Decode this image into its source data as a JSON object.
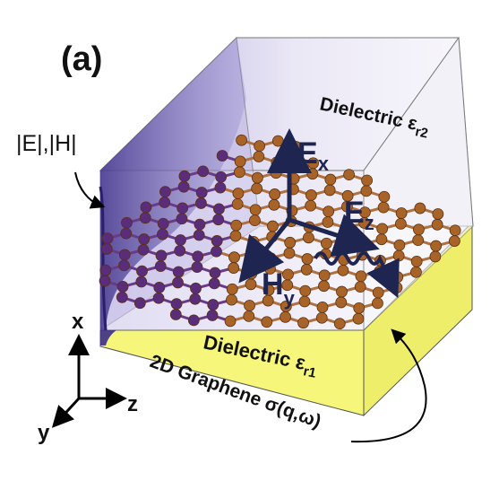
{
  "panel_label": "(a)",
  "field_label": "|E|,|H|",
  "upper_dielectric": {
    "label": "Dielectric ε",
    "subscript": "r2"
  },
  "lower_dielectric": {
    "label": "Dielectric ε",
    "subscript": "r1"
  },
  "graphene_label": "2D Graphene σ(q,ω)",
  "field_vectors": [
    {
      "main": "E",
      "sub": "x"
    },
    {
      "main": "E",
      "sub": "z"
    },
    {
      "main": "H",
      "sub": "y"
    }
  ],
  "axes": {
    "x": "x",
    "y": "y",
    "z": "z"
  },
  "colors": {
    "upper_box": "#cfc9ea",
    "upper_face_light": "#f2f0f8",
    "lower_box": "#f5f577",
    "lower_side": "#f0f070",
    "field_profile": "#3c2d87",
    "arrow": "#1e2550",
    "atom": "#a86428",
    "atom_violet": "#5a2d7a",
    "bond": "#b07040"
  }
}
